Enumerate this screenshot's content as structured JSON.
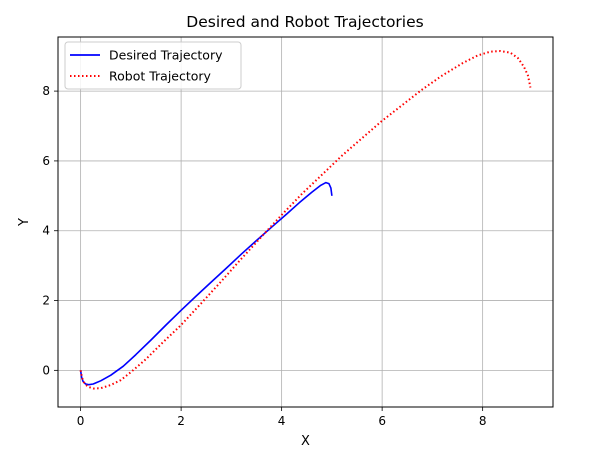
{
  "chart_data": {
    "type": "line",
    "title": "Desired and Robot Trajectories",
    "xlabel": "X",
    "ylabel": "Y",
    "xlim": [
      -0.45,
      9.4
    ],
    "ylim": [
      -1.05,
      9.55
    ],
    "xticks": [
      0,
      2,
      4,
      6,
      8
    ],
    "yticks": [
      0,
      2,
      4,
      6,
      8
    ],
    "grid": true,
    "legend_position": "top-left",
    "series": [
      {
        "name": "Desired Trajectory",
        "color": "#0000ff",
        "style": "solid",
        "x": [
          0.0,
          0.02,
          0.05,
          0.1,
          0.16,
          0.25,
          0.4,
          0.6,
          0.85,
          1.1,
          1.4,
          1.7,
          2.0,
          2.3,
          2.6,
          2.9,
          3.2,
          3.5,
          3.8,
          4.1,
          4.35,
          4.6,
          4.78,
          4.88,
          4.94,
          4.98,
          5.0
        ],
        "y": [
          0.0,
          -0.2,
          -0.32,
          -0.39,
          -0.41,
          -0.39,
          -0.3,
          -0.14,
          0.12,
          0.45,
          0.87,
          1.3,
          1.72,
          2.13,
          2.53,
          2.93,
          3.33,
          3.72,
          4.1,
          4.48,
          4.8,
          5.1,
          5.3,
          5.38,
          5.35,
          5.22,
          5.0
        ]
      },
      {
        "name": "Robot Trajectory",
        "color": "#ff0000",
        "style": "dotted",
        "x": [
          0.0,
          0.03,
          0.08,
          0.15,
          0.25,
          0.4,
          0.6,
          0.8,
          1.0,
          1.3,
          1.6,
          2.0,
          2.4,
          2.8,
          3.2,
          3.6,
          4.0,
          4.4,
          4.8,
          5.2,
          5.6,
          6.0,
          6.4,
          6.8,
          7.2,
          7.6,
          7.9,
          8.15,
          8.35,
          8.55,
          8.7,
          8.82,
          8.9,
          8.93,
          8.95
        ],
        "y": [
          0.0,
          -0.22,
          -0.38,
          -0.47,
          -0.52,
          -0.51,
          -0.42,
          -0.28,
          -0.05,
          0.32,
          0.75,
          1.3,
          1.92,
          2.55,
          3.2,
          3.83,
          4.45,
          5.05,
          5.6,
          6.15,
          6.65,
          7.15,
          7.6,
          8.05,
          8.45,
          8.8,
          9.02,
          9.13,
          9.15,
          9.1,
          8.95,
          8.7,
          8.45,
          8.25,
          8.1
        ]
      }
    ]
  }
}
